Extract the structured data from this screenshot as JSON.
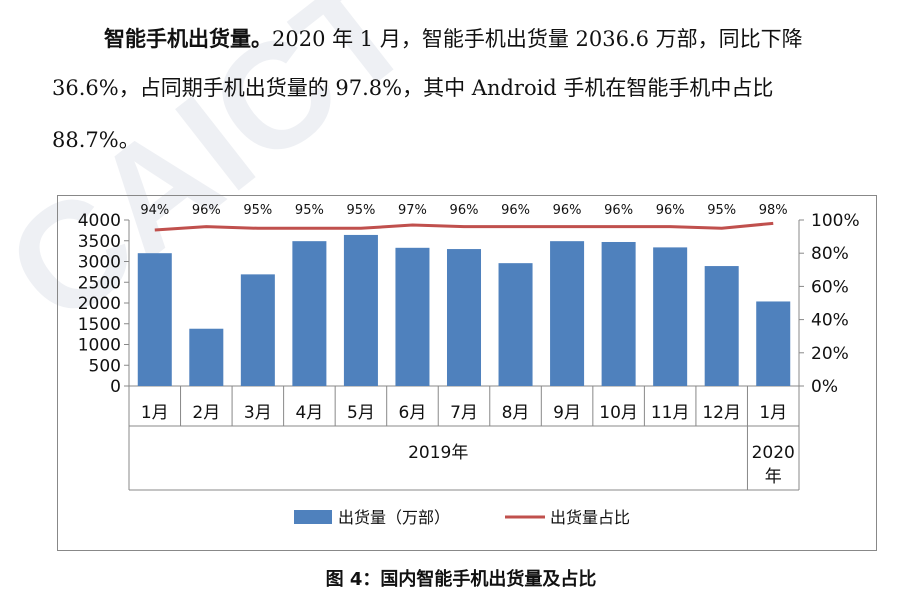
{
  "paragraph": {
    "lead_bold": "智能手机出货量。",
    "line1_rest": "2020 年 1 月，智能手机出货量 2036.6 万部，同比下降",
    "line2": "36.6%，占同期手机出货量的 97.8%，其中 Android 手机在智能手机中占比",
    "line3": "88.7%。"
  },
  "watermark": {
    "text": "CAICT"
  },
  "caption": "图 4：国内智能手机出货量及占比",
  "chart_data": {
    "type": "bar",
    "categories": [
      "1月",
      "2月",
      "3月",
      "4月",
      "5月",
      "6月",
      "7月",
      "8月",
      "9月",
      "10月",
      "11月",
      "12月",
      "1月"
    ],
    "year_groups": [
      {
        "label": "2019年",
        "span": 12
      },
      {
        "label": "2020年",
        "span": 1
      }
    ],
    "series": [
      {
        "name": "出货量（万部）",
        "type": "bar",
        "axis": "left",
        "color": "#4f81bd",
        "values": [
          3200,
          1380,
          2690,
          3490,
          3640,
          3330,
          3300,
          2960,
          3490,
          3470,
          3340,
          2890,
          2037
        ]
      },
      {
        "name": "出货量占比",
        "type": "line",
        "axis": "right",
        "color": "#c0504d",
        "values": [
          94,
          96,
          95,
          95,
          95,
          97,
          96,
          96,
          96,
          96,
          96,
          95,
          98
        ],
        "labels": [
          "94%",
          "96%",
          "95%",
          "95%",
          "95%",
          "97%",
          "96%",
          "96%",
          "96%",
          "96%",
          "96%",
          "95%",
          "98%"
        ]
      }
    ],
    "y_left": {
      "min": 0,
      "max": 4000,
      "ticks": [
        "0",
        "500",
        "1000",
        "1500",
        "2000",
        "2500",
        "3000",
        "3500",
        "4000"
      ]
    },
    "y_right": {
      "min": 0,
      "max": 100,
      "ticks": [
        "0%",
        "20%",
        "40%",
        "60%",
        "80%",
        "100%"
      ]
    },
    "legend_position": "bottom",
    "grid": false
  }
}
